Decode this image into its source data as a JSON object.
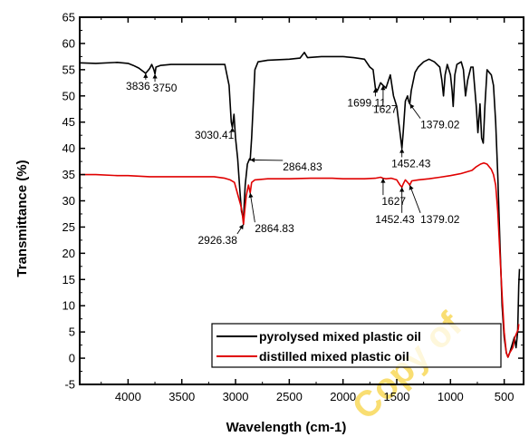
{
  "chart_data": {
    "type": "line",
    "xlabel": "Wavelength (cm-1)",
    "ylabel": "Transmittance (%)",
    "xlim": [
      4450,
      320
    ],
    "ylim": [
      -5,
      65
    ],
    "x_ticks": [
      4000,
      3500,
      3000,
      2500,
      2000,
      1500,
      1000,
      500
    ],
    "y_ticks": [
      -5,
      0,
      5,
      10,
      15,
      20,
      25,
      30,
      35,
      40,
      45,
      50,
      55,
      60,
      65
    ],
    "grid": false,
    "legend_position": "bottom-right",
    "series": [
      {
        "name": "pyrolysed mixed plastic oil",
        "color": "#000000",
        "points": [
          [
            4450,
            56.3
          ],
          [
            4300,
            56.2
          ],
          [
            4100,
            56.4
          ],
          [
            4000,
            56.2
          ],
          [
            3950,
            55.8
          ],
          [
            3900,
            55.3
          ],
          [
            3836,
            54.3
          ],
          [
            3800,
            55.2
          ],
          [
            3780,
            56.0
          ],
          [
            3760,
            55.0
          ],
          [
            3750,
            54.2
          ],
          [
            3740,
            55.5
          ],
          [
            3700,
            55.8
          ],
          [
            3600,
            56.0
          ],
          [
            3400,
            56.0
          ],
          [
            3200,
            56.0
          ],
          [
            3100,
            56.0
          ],
          [
            3060,
            52.0
          ],
          [
            3040,
            45.0
          ],
          [
            3030,
            44.0
          ],
          [
            3015,
            46.5
          ],
          [
            3000,
            42.0
          ],
          [
            2980,
            38.0
          ],
          [
            2960,
            32.0
          ],
          [
            2945,
            28.0
          ],
          [
            2926,
            26.5
          ],
          [
            2910,
            33.0
          ],
          [
            2890,
            37.0
          ],
          [
            2870,
            38.0
          ],
          [
            2864,
            37.8
          ],
          [
            2850,
            42.0
          ],
          [
            2820,
            55.0
          ],
          [
            2790,
            56.5
          ],
          [
            2700,
            56.8
          ],
          [
            2500,
            57.0
          ],
          [
            2400,
            57.2
          ],
          [
            2360,
            58.3
          ],
          [
            2330,
            57.3
          ],
          [
            2200,
            57.5
          ],
          [
            2000,
            57.5
          ],
          [
            1900,
            57.3
          ],
          [
            1800,
            57.0
          ],
          [
            1750,
            55.5
          ],
          [
            1720,
            55.0
          ],
          [
            1699,
            51.5
          ],
          [
            1680,
            51.0
          ],
          [
            1650,
            52.5
          ],
          [
            1627,
            52.0
          ],
          [
            1600,
            51.5
          ],
          [
            1560,
            54.0
          ],
          [
            1530,
            50.0
          ],
          [
            1500,
            48.0
          ],
          [
            1470,
            43.0
          ],
          [
            1452,
            40.0
          ],
          [
            1440,
            43.0
          ],
          [
            1420,
            49.0
          ],
          [
            1400,
            50.0
          ],
          [
            1390,
            49.0
          ],
          [
            1379,
            48.5
          ],
          [
            1365,
            51.0
          ],
          [
            1330,
            54.5
          ],
          [
            1300,
            55.5
          ],
          [
            1250,
            56.5
          ],
          [
            1200,
            57.0
          ],
          [
            1150,
            56.5
          ],
          [
            1100,
            55.5
          ],
          [
            1080,
            53.0
          ],
          [
            1065,
            50.0
          ],
          [
            1050,
            54.0
          ],
          [
            1030,
            56.0
          ],
          [
            1000,
            54.0
          ],
          [
            985,
            51.0
          ],
          [
            975,
            48.0
          ],
          [
            960,
            54.0
          ],
          [
            940,
            56.0
          ],
          [
            900,
            56.5
          ],
          [
            880,
            55.0
          ],
          [
            860,
            50.0
          ],
          [
            840,
            53.0
          ],
          [
            810,
            55.5
          ],
          [
            790,
            55.5
          ],
          [
            760,
            48.0
          ],
          [
            745,
            43.0
          ],
          [
            725,
            48.5
          ],
          [
            710,
            42.0
          ],
          [
            695,
            41.0
          ],
          [
            680,
            48.0
          ],
          [
            660,
            55.0
          ],
          [
            640,
            54.5
          ],
          [
            620,
            54.0
          ],
          [
            600,
            52.0
          ],
          [
            580,
            45.0
          ],
          [
            560,
            35.0
          ],
          [
            540,
            22.0
          ],
          [
            520,
            10.0
          ],
          [
            500,
            4.0
          ],
          [
            480,
            1.0
          ],
          [
            465,
            0.2
          ],
          [
            450,
            1.0
          ],
          [
            435,
            2.0
          ],
          [
            420,
            3.0
          ],
          [
            405,
            4.0
          ],
          [
            390,
            2.0
          ],
          [
            375,
            5.0
          ],
          [
            365,
            14.0
          ],
          [
            358,
            17.0
          ]
        ]
      },
      {
        "name": "distilled mixed plastic oil",
        "color": "#e00000",
        "points": [
          [
            4450,
            35.0
          ],
          [
            4300,
            35.0
          ],
          [
            4100,
            34.8
          ],
          [
            4000,
            34.8
          ],
          [
            3800,
            34.6
          ],
          [
            3600,
            34.6
          ],
          [
            3400,
            34.6
          ],
          [
            3200,
            34.6
          ],
          [
            3100,
            34.3
          ],
          [
            3050,
            34.0
          ],
          [
            3010,
            33.5
          ],
          [
            2990,
            32.0
          ],
          [
            2970,
            30.5
          ],
          [
            2950,
            29.0
          ],
          [
            2940,
            28.0
          ],
          [
            2926,
            25.5
          ],
          [
            2915,
            28.0
          ],
          [
            2900,
            31.0
          ],
          [
            2880,
            33.0
          ],
          [
            2864,
            31.5
          ],
          [
            2850,
            33.5
          ],
          [
            2820,
            34.0
          ],
          [
            2700,
            34.2
          ],
          [
            2500,
            34.2
          ],
          [
            2300,
            34.3
          ],
          [
            2100,
            34.3
          ],
          [
            2000,
            34.2
          ],
          [
            1800,
            34.2
          ],
          [
            1700,
            34.3
          ],
          [
            1650,
            34.5
          ],
          [
            1627,
            34.3
          ],
          [
            1600,
            34.2
          ],
          [
            1550,
            34.3
          ],
          [
            1500,
            34.0
          ],
          [
            1470,
            33.0
          ],
          [
            1452,
            32.6
          ],
          [
            1440,
            33.2
          ],
          [
            1420,
            34.0
          ],
          [
            1390,
            33.3
          ],
          [
            1379,
            33.0
          ],
          [
            1360,
            33.8
          ],
          [
            1300,
            34.0
          ],
          [
            1200,
            34.2
          ],
          [
            1100,
            34.5
          ],
          [
            1000,
            34.8
          ],
          [
            900,
            35.2
          ],
          [
            800,
            35.8
          ],
          [
            760,
            36.5
          ],
          [
            720,
            37.0
          ],
          [
            690,
            37.2
          ],
          [
            660,
            37.0
          ],
          [
            640,
            36.5
          ],
          [
            620,
            36.0
          ],
          [
            600,
            35.0
          ],
          [
            580,
            33.0
          ],
          [
            560,
            28.0
          ],
          [
            540,
            20.0
          ],
          [
            520,
            12.0
          ],
          [
            500,
            5.0
          ],
          [
            480,
            1.0
          ],
          [
            465,
            0.2
          ],
          [
            450,
            1.0
          ],
          [
            420,
            2.0
          ],
          [
            400,
            4.0
          ],
          [
            380,
            5.0
          ],
          [
            370,
            5.5
          ],
          [
            365,
            6.5
          ]
        ]
      }
    ],
    "annotations": [
      {
        "text": "3836",
        "x": 3836,
        "y": 54.3,
        "label_x": 4020,
        "label_y": 51.2
      },
      {
        "text": "3750",
        "x": 3750,
        "y": 54.2,
        "label_x": 3770,
        "label_y": 50.8
      },
      {
        "text": "3030.41",
        "x": 3030,
        "y": 44.0,
        "label_x": 3380,
        "label_y": 41.8
      },
      {
        "text": "2864.83",
        "x": 2864,
        "y": 37.8,
        "label_x": 2560,
        "label_y": 35.8
      },
      {
        "text": "1699.11",
        "x": 1699,
        "y": 51.5,
        "label_x": 1960,
        "label_y": 48.0
      },
      {
        "text": "1627",
        "x": 1627,
        "y": 52.0,
        "label_x": 1720,
        "label_y": 46.8
      },
      {
        "text": "1452.43",
        "x": 1452,
        "y": 40.0,
        "label_x": 1550,
        "label_y": 36.4
      },
      {
        "text": "1379.02",
        "x": 1379,
        "y": 48.5,
        "label_x": 1280,
        "label_y": 43.8
      },
      {
        "text": "2926.38",
        "x": 2926,
        "y": 25.5,
        "label_x": 3350,
        "label_y": 21.8
      },
      {
        "text": "2864.83",
        "x": 2864,
        "y": 31.5,
        "label_x": 2820,
        "label_y": 24.0
      },
      {
        "text": "1627",
        "x": 1627,
        "y": 34.3,
        "label_x": 1640,
        "label_y": 29.2
      },
      {
        "text": "1452.43",
        "x": 1452,
        "y": 32.6,
        "label_x": 1700,
        "label_y": 25.8
      },
      {
        "text": "1379.02",
        "x": 1379,
        "y": 33.0,
        "label_x": 1280,
        "label_y": 25.8
      }
    ]
  },
  "watermark": {
    "text": "Copy of",
    "color": "#f5c400"
  }
}
